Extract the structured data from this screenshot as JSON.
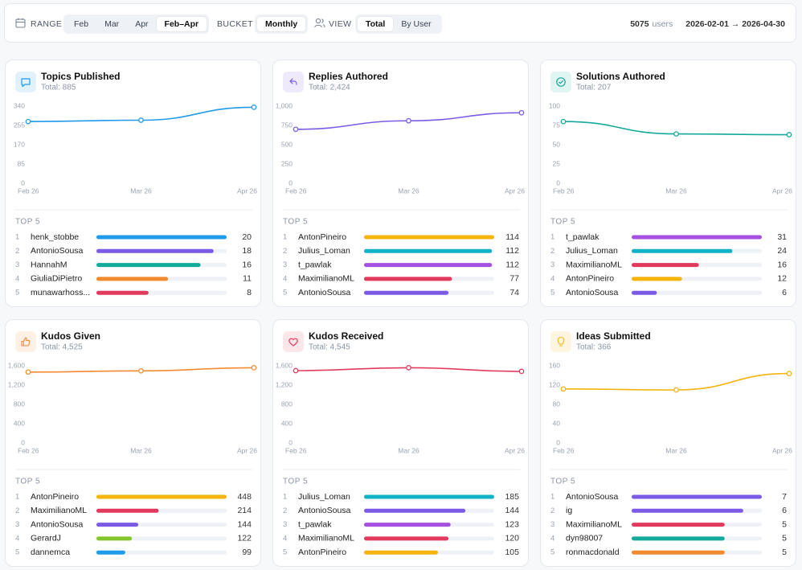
{
  "toolbar": {
    "range_label": "RANGE",
    "range_options": [
      "Feb",
      "Mar",
      "Apr",
      "Feb–Apr"
    ],
    "range_selected": 3,
    "bucket_label": "BUCKET",
    "bucket_options": [
      "Monthly"
    ],
    "bucket_selected": 0,
    "view_label": "VIEW",
    "view_options": [
      "Total",
      "By User"
    ],
    "view_selected": 0,
    "user_count": 5075,
    "user_count_label": "users",
    "date_range": "2026-02-01 → 2026-04-30"
  },
  "cards": [
    {
      "title": "Topics Published",
      "subtitle": "Total: 885",
      "color": "#1f9bea",
      "chart": {
        "type": "line",
        "x": [
          "Feb 26",
          "Mar 26",
          "Apr 26"
        ],
        "values": [
          272,
          278,
          335
        ],
        "ylim": [
          0,
          340
        ],
        "yticks": [
          0,
          85,
          170,
          255,
          340
        ]
      },
      "top_label": "TOP 5",
      "top": [
        {
          "rank": 1,
          "name": "henk_stobbe",
          "value": 20,
          "color": "#1f9bea"
        },
        {
          "rank": 2,
          "name": "AntonioSousa",
          "value": 18,
          "color": "#7b5be6"
        },
        {
          "rank": 3,
          "name": "HannahM",
          "value": 16,
          "color": "#13a99b"
        },
        {
          "rank": 4,
          "name": "GiuliaDiPietro",
          "value": 11,
          "color": "#f28b30"
        },
        {
          "rank": 5,
          "name": "munawarhoss...",
          "value": 8,
          "color": "#e23a5d"
        }
      ]
    },
    {
      "title": "Replies Authored",
      "subtitle": "Total: 2,424",
      "color": "#7b5be6",
      "chart": {
        "type": "line",
        "x": [
          "Feb 26",
          "Mar 26",
          "Apr 26"
        ],
        "values": [
          700,
          810,
          914
        ],
        "ylim": [
          0,
          1000
        ],
        "yticks": [
          0,
          250,
          500,
          750,
          {
            "value": 1000,
            "label": "1,000"
          }
        ]
      },
      "top_label": "TOP 5",
      "top": [
        {
          "rank": 1,
          "name": "AntonPineiro",
          "value": 114,
          "color": "#f6b40c"
        },
        {
          "rank": 2,
          "name": "Julius_Loman",
          "value": 112,
          "color": "#12b3c7"
        },
        {
          "rank": 3,
          "name": "t_pawlak",
          "value": 112,
          "color": "#a550e0"
        },
        {
          "rank": 4,
          "name": "MaximilianoML",
          "value": 77,
          "color": "#e23a5d"
        },
        {
          "rank": 5,
          "name": "AntonioSousa",
          "value": 74,
          "color": "#7b5be6"
        }
      ]
    },
    {
      "title": "Solutions Authored",
      "subtitle": "Total: 207",
      "color": "#13a99b",
      "chart": {
        "type": "line",
        "x": [
          "Feb 26",
          "Mar 26",
          "Apr 26"
        ],
        "values": [
          80,
          64,
          63
        ],
        "ylim": [
          0,
          100
        ],
        "yticks": [
          0,
          25,
          50,
          75,
          100
        ]
      },
      "top_label": "TOP 5",
      "top": [
        {
          "rank": 1,
          "name": "t_pawlak",
          "value": 31,
          "color": "#a550e0"
        },
        {
          "rank": 2,
          "name": "Julius_Loman",
          "value": 24,
          "color": "#12b3c7"
        },
        {
          "rank": 3,
          "name": "MaximilianoML",
          "value": 16,
          "color": "#e23a5d"
        },
        {
          "rank": 4,
          "name": "AntonPineiro",
          "value": 12,
          "color": "#f6b40c"
        },
        {
          "rank": 5,
          "name": "AntonioSousa",
          "value": 6,
          "color": "#7b5be6"
        }
      ]
    },
    {
      "title": "Kudos Given",
      "subtitle": "Total: 4,525",
      "color": "#f28b30",
      "chart": {
        "type": "line",
        "x": [
          "Feb 26",
          "Mar 26",
          "Apr 26"
        ],
        "values": [
          1470,
          1495,
          1560
        ],
        "ylim": [
          0,
          1600
        ],
        "yticks": [
          0,
          400,
          800,
          {
            "value": 1200,
            "label": "1,200"
          },
          {
            "value": 1600,
            "label": "1,600"
          }
        ]
      },
      "top_label": "TOP 5",
      "top": [
        {
          "rank": 1,
          "name": "AntonPineiro",
          "value": 448,
          "color": "#f6b40c"
        },
        {
          "rank": 2,
          "name": "MaximilianoML",
          "value": 214,
          "color": "#e23a5d"
        },
        {
          "rank": 3,
          "name": "AntonioSousa",
          "value": 144,
          "color": "#7b5be6"
        },
        {
          "rank": 4,
          "name": "GerardJ",
          "value": 122,
          "color": "#84c52a"
        },
        {
          "rank": 5,
          "name": "dannemca",
          "value": 99,
          "color": "#1f9bea"
        }
      ]
    },
    {
      "title": "Kudos Received",
      "subtitle": "Total: 4,545",
      "color": "#e23a5d",
      "chart": {
        "type": "line",
        "x": [
          "Feb 26",
          "Mar 26",
          "Apr 26"
        ],
        "values": [
          1500,
          1560,
          1485
        ],
        "ylim": [
          0,
          1600
        ],
        "yticks": [
          0,
          400,
          800,
          {
            "value": 1200,
            "label": "1,200"
          },
          {
            "value": 1600,
            "label": "1,600"
          }
        ]
      },
      "top_label": "TOP 5",
      "top": [
        {
          "rank": 1,
          "name": "Julius_Loman",
          "value": 185,
          "color": "#12b3c7"
        },
        {
          "rank": 2,
          "name": "AntonioSousa",
          "value": 144,
          "color": "#7b5be6"
        },
        {
          "rank": 3,
          "name": "t_pawlak",
          "value": 123,
          "color": "#a550e0"
        },
        {
          "rank": 4,
          "name": "MaximilianoML",
          "value": 120,
          "color": "#e23a5d"
        },
        {
          "rank": 5,
          "name": "AntonPineiro",
          "value": 105,
          "color": "#f6b40c"
        }
      ]
    },
    {
      "title": "Ideas Submitted",
      "subtitle": "Total: 366",
      "color": "#f6b40c",
      "chart": {
        "type": "line",
        "x": [
          "Feb 26",
          "Mar 26",
          "Apr 26"
        ],
        "values": [
          112,
          110,
          144
        ],
        "ylim": [
          0,
          160
        ],
        "yticks": [
          0,
          40,
          80,
          120,
          160
        ]
      },
      "top_label": "TOP 5",
      "top": [
        {
          "rank": 1,
          "name": "AntonioSousa",
          "value": 7,
          "color": "#7b5be6"
        },
        {
          "rank": 2,
          "name": "ig",
          "value": 6,
          "color": "#7b5be6"
        },
        {
          "rank": 3,
          "name": "MaximilianoML",
          "value": 5,
          "color": "#e23a5d"
        },
        {
          "rank": 4,
          "name": "dyn98007",
          "value": 5,
          "color": "#13a99b"
        },
        {
          "rank": 5,
          "name": "ronmacdonald",
          "value": 5,
          "color": "#f28b30"
        }
      ]
    }
  ]
}
